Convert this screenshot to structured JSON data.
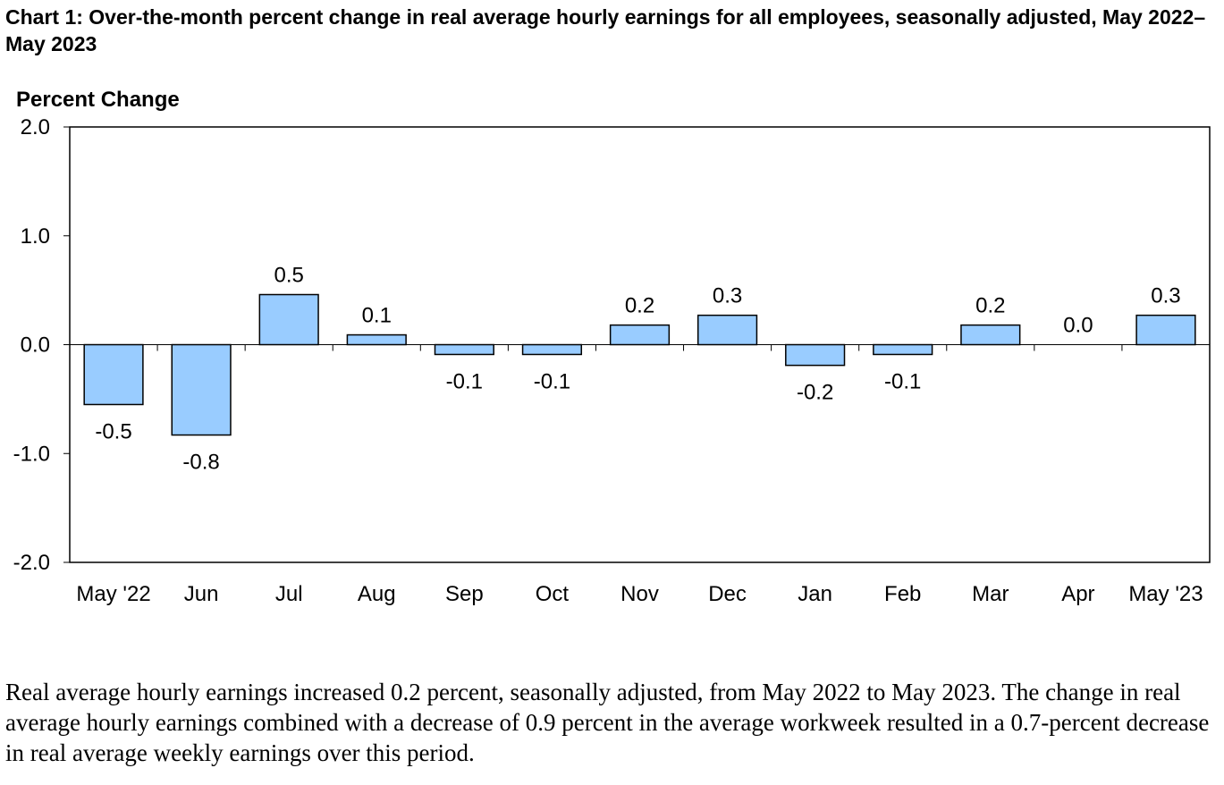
{
  "title": "Chart 1: Over-the-month percent change in real average hourly earnings for all employees, seasonally adjusted, May 2022–May 2023",
  "colors": {
    "bar_fill": "#99ccff",
    "bar_stroke": "#000000"
  },
  "chart_data": {
    "type": "bar",
    "title": "Chart 1: Over-the-month percent change in real average hourly earnings for all employees, seasonally adjusted, May 2022–May 2023",
    "xlabel": "",
    "ylabel": "Percent Change",
    "ylim": [
      -2.0,
      2.0
    ],
    "yticks": [
      "2.0",
      "1.0",
      "0.0",
      "-1.0",
      "-2.0"
    ],
    "ytick_values": [
      2.0,
      1.0,
      0.0,
      -1.0,
      -2.0
    ],
    "grid": false,
    "categories": [
      "May '22",
      "Jun",
      "Jul",
      "Aug",
      "Sep",
      "Oct",
      "Nov",
      "Dec",
      "Jan",
      "Feb",
      "Mar",
      "Apr",
      "May '23"
    ],
    "values": [
      -0.55,
      -0.83,
      0.46,
      0.09,
      -0.09,
      -0.09,
      0.18,
      0.27,
      -0.19,
      -0.09,
      0.18,
      0.0,
      0.27
    ],
    "data_labels": [
      "-0.5",
      "-0.8",
      "0.5",
      "0.1",
      "-0.1",
      "-0.1",
      "0.2",
      "0.3",
      "-0.2",
      "-0.1",
      "0.2",
      "0.0",
      "0.3"
    ]
  },
  "note": "Real average hourly earnings increased 0.2 percent, seasonally adjusted, from May 2022 to May 2023. The change in real average hourly earnings combined with a decrease of 0.9 percent in the average workweek resulted in a 0.7-percent decrease in real average weekly earnings over this period."
}
